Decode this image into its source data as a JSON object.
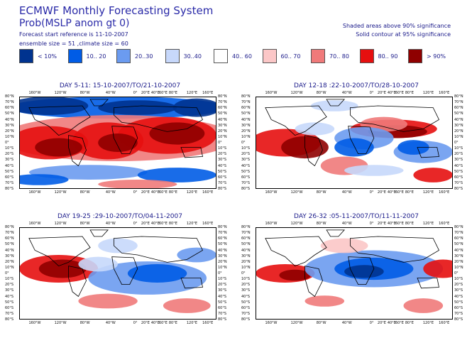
{
  "header": {
    "system_title": "ECMWF Monthly Forecasting System",
    "product": "Prob(MSLP anom gt 0)",
    "start_ref": "Forecast start reference is 11-10-2007",
    "ensemble": "ensemble size = 51 ,climate size = 60",
    "note_shaded": "Shaded areas above 90% significance",
    "note_contour": "Solid contour at 95% significance"
  },
  "legend": [
    {
      "label": "< 10%",
      "color": "#00338f"
    },
    {
      "label": "10.. 20",
      "color": "#005ce6"
    },
    {
      "label": "20..30",
      "color": "#6b9bf0"
    },
    {
      "label": "30..40",
      "color": "#c7d8fb"
    },
    {
      "label": "40.. 60",
      "color": "#ffffff"
    },
    {
      "label": "60.. 70",
      "color": "#fbc7c7"
    },
    {
      "label": "70.. 80",
      "color": "#f07a7a"
    },
    {
      "label": "80.. 90",
      "color": "#e60f0f"
    },
    {
      "label": "> 90%",
      "color": "#8f0000"
    }
  ],
  "panels": [
    {
      "title": "DAY 5-11: 15-10-2007/TO/21-10-2007",
      "dominant": "warm-strong"
    },
    {
      "title": "DAY 12-18 :22-10-2007/TO/28-10-2007",
      "dominant": "mixed"
    },
    {
      "title": "DAY 19-25 :29-10-2007/TO/04-11-2007",
      "dominant": "cool"
    },
    {
      "title": "DAY 26-32 :05-11-2007/TO/11-11-2007",
      "dominant": "cool"
    }
  ],
  "axes": {
    "lon_labels": [
      "160°W",
      "120°W",
      "80°W",
      "40°W",
      "0°",
      "20°E",
      "40°E",
      "60°E",
      "80°E",
      "120°E",
      "160°E"
    ],
    "lat_labels": [
      "80°N",
      "70°N",
      "60°N",
      "50°N",
      "40°N",
      "30°N",
      "20°N",
      "10°N",
      "0°",
      "10°S",
      "20°S",
      "30°S",
      "40°S",
      "50°S",
      "60°S",
      "70°S",
      "80°S"
    ]
  }
}
